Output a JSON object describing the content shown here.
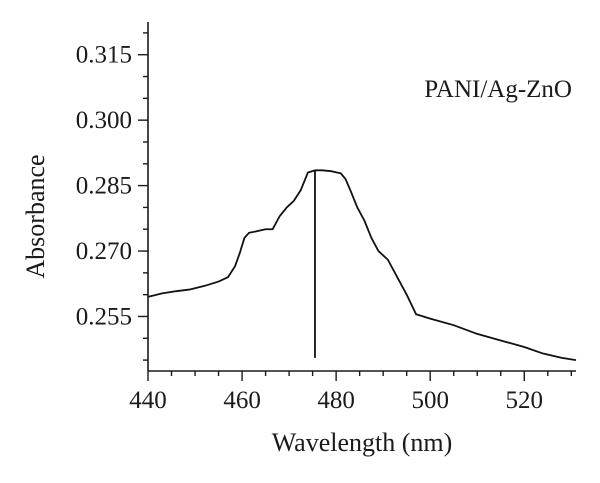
{
  "chart_data": {
    "type": "line",
    "xlabel": "Wavelength (nm)",
    "ylabel": "Absorbance",
    "xlim": [
      440,
      531
    ],
    "ylim": [
      0.2425,
      0.3225
    ],
    "x_ticks": [
      440,
      460,
      480,
      500,
      520
    ],
    "x_minor_step": 5,
    "y_ticks": [
      0.255,
      0.27,
      0.285,
      0.3,
      0.315
    ],
    "y_tick_labels": [
      "0.255",
      "0.270",
      "0.285",
      "0.300",
      "0.315"
    ],
    "y_minor_step": 0.005,
    "grid": false,
    "legend_position": "top-right",
    "annotation": {
      "text": "PANI/Ag-ZnO"
    },
    "peak_marker": {
      "x": 475.5,
      "y_top": 0.2885,
      "y_bottom": 0.2455
    },
    "series": [
      {
        "x": [
          440,
          443,
          446,
          449,
          452,
          455,
          457,
          458.5,
          459.5,
          460.5,
          461.5,
          463,
          465,
          466.5,
          468,
          469.5,
          471,
          472.5,
          474,
          475.5,
          477,
          479,
          481,
          482,
          483,
          484.5,
          486,
          487.5,
          489,
          491,
          493,
          495,
          497,
          500,
          505,
          510,
          515,
          520,
          524,
          528,
          531
        ],
        "y": [
          0.2595,
          0.2603,
          0.2608,
          0.2612,
          0.262,
          0.263,
          0.264,
          0.2665,
          0.2695,
          0.273,
          0.2742,
          0.2745,
          0.275,
          0.275,
          0.278,
          0.28,
          0.2815,
          0.284,
          0.288,
          0.2885,
          0.2885,
          0.2883,
          0.2878,
          0.2865,
          0.284,
          0.28,
          0.277,
          0.273,
          0.27,
          0.268,
          0.264,
          0.26,
          0.2555,
          0.2545,
          0.253,
          0.251,
          0.2495,
          0.248,
          0.2465,
          0.2455,
          0.245
        ]
      }
    ]
  }
}
